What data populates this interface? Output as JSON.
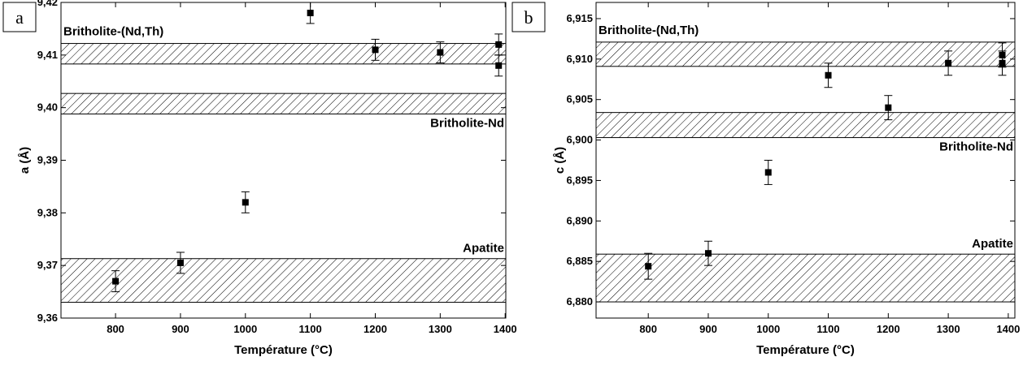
{
  "chart_data": [
    {
      "type": "scatter",
      "panel": "a",
      "xlabel": "Température (°C)",
      "ylabel": "a (Å)",
      "color": "#000000",
      "x": [
        800,
        900,
        1000,
        1100,
        1200,
        1300,
        1390,
        1390
      ],
      "values": [
        9.367,
        9.3705,
        9.382,
        9.418,
        9.411,
        9.4105,
        9.412,
        9.408
      ],
      "errors": [
        0.002,
        0.002,
        0.002,
        0.002,
        0.002,
        0.002,
        0.002,
        0.002
      ],
      "bands": [
        {
          "name": "Britholite-(Nd,Th)",
          "low": 9.4083,
          "high": 9.4122
        },
        {
          "name": "Britholite-Nd",
          "low": 9.3988,
          "high": 9.4027
        },
        {
          "name": "Apatite",
          "low": 9.363,
          "high": 9.3713
        }
      ],
      "xlim": [
        716,
        1401
      ],
      "xticks": [
        800,
        900,
        1000,
        1100,
        1200,
        1300,
        1400
      ],
      "ylim": [
        9.36,
        9.42
      ],
      "yticks": [
        {
          "value": 9.36,
          "label": "9,36"
        },
        {
          "value": 9.37,
          "label": "9,37"
        },
        {
          "value": 9.38,
          "label": "9,38"
        },
        {
          "value": 9.39,
          "label": "9,39"
        },
        {
          "value": 9.4,
          "label": "9,40"
        },
        {
          "value": 9.41,
          "label": "9,41"
        },
        {
          "value": 9.42,
          "label": "9,42"
        }
      ]
    },
    {
      "type": "scatter",
      "panel": "b",
      "xlabel": "Température (°C)",
      "ylabel": "c (Å)",
      "color": "#000000",
      "x": [
        800,
        900,
        1000,
        1100,
        1200,
        1300,
        1390,
        1390
      ],
      "values": [
        6.8844,
        6.886,
        6.896,
        6.908,
        6.904,
        6.9095,
        6.9095,
        6.9105
      ],
      "errors": [
        0.0016,
        0.0015,
        0.0015,
        0.0015,
        0.0015,
        0.0015,
        0.0015,
        0.0015
      ],
      "bands": [
        {
          "name": "Britholite-(Nd,Th)",
          "low": 6.9091,
          "high": 6.9121
        },
        {
          "name": "Britholite-Nd",
          "low": 6.9003,
          "high": 6.9034
        },
        {
          "name": "Apatite",
          "low": 6.88,
          "high": 6.8859
        }
      ],
      "xlim": [
        713,
        1411
      ],
      "xticks": [
        800,
        900,
        1000,
        1100,
        1200,
        1300,
        1400
      ],
      "ylim": [
        6.878,
        6.917
      ],
      "yticks": [
        {
          "value": 6.88,
          "label": "6,880"
        },
        {
          "value": 6.885,
          "label": "6,885"
        },
        {
          "value": 6.89,
          "label": "6,890"
        },
        {
          "value": 6.895,
          "label": "6,895"
        },
        {
          "value": 6.9,
          "label": "6,900"
        },
        {
          "value": 6.905,
          "label": "6,905"
        },
        {
          "value": 6.91,
          "label": "6,910"
        },
        {
          "value": 6.915,
          "label": "6,915"
        }
      ]
    }
  ]
}
